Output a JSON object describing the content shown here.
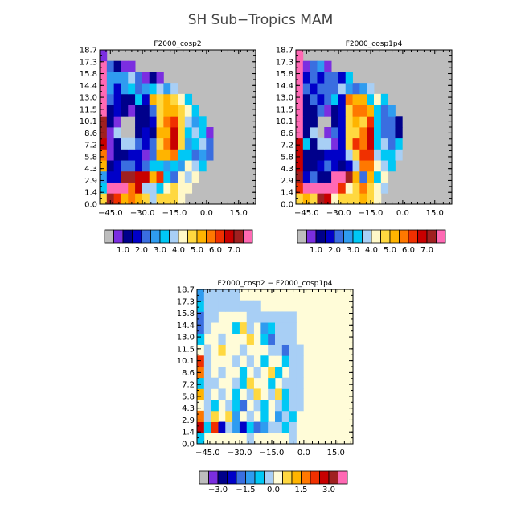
{
  "title": "SH Sub−Tropics MAM",
  "y_ticks": [
    "0.0",
    "1.4",
    "2.9",
    "4.3",
    "5.8",
    "7.2",
    "8.6",
    "10.1",
    "11.5",
    "13.0",
    "14.4",
    "15.8",
    "17.3",
    "18.7"
  ],
  "x_ticks": [
    "−45.0",
    "−30.0",
    "−15.0",
    "0.0",
    "15.0"
  ],
  "palettes": {
    "abs": [
      "#bdbdbd",
      "#7b2ee0",
      "#00008b",
      "#0000c8",
      "#3a6ee0",
      "#2f9cf0",
      "#00c8f5",
      "#a8cff5",
      "#fff8c8",
      "#ffd840",
      "#ffb400",
      "#ff7800",
      "#f03000",
      "#c80000",
      "#a02020",
      "#ff69b4"
    ],
    "diff": [
      "#bdbdbd",
      "#7b2ee0",
      "#00008b",
      "#0000c8",
      "#3a6ee0",
      "#2f9cf0",
      "#00c8f5",
      "#a8cff5",
      "#fffcd8",
      "#ffd840",
      "#ffb400",
      "#ff7800",
      "#f03000",
      "#c80000",
      "#a02020",
      "#ff69b4"
    ]
  },
  "colorbar_abs_labels": [
    "1.0",
    "2.0",
    "3.0",
    "4.0",
    "5.0",
    "6.0",
    "7.0"
  ],
  "colorbar_diff_labels": [
    "−3.0",
    "−1.5",
    "0.0",
    "1.5",
    "3.0"
  ],
  "chart_data": [
    {
      "type": "heatmap",
      "title": "F2000_cosp2",
      "xlabel": "",
      "ylabel": "",
      "xlim": [
        -50,
        23
      ],
      "ylim": [
        0,
        18.7
      ],
      "background": "#bdbdbd",
      "cells": [
        [
          9,
          14,
          12,
          10,
          11,
          10,
          9,
          7,
          9,
          9,
          9,
          8,
          0,
          0,
          0,
          0,
          0,
          0,
          0,
          0,
          0,
          0
        ],
        [
          6,
          15,
          15,
          15,
          11,
          13,
          7,
          7,
          6,
          8,
          9,
          8,
          8,
          0,
          0,
          0,
          0,
          0,
          0,
          0,
          0,
          0
        ],
        [
          5,
          3,
          3,
          14,
          14,
          13,
          13,
          10,
          12,
          6,
          4,
          8,
          7,
          8,
          0,
          0,
          0,
          0,
          0,
          0,
          0,
          0
        ],
        [
          10,
          2,
          3,
          4,
          4,
          3,
          4,
          6,
          6,
          5,
          6,
          5,
          8,
          7,
          6,
          0,
          0,
          0,
          0,
          0,
          0,
          0
        ],
        [
          11,
          1,
          2,
          2,
          3,
          3,
          1,
          4,
          10,
          10,
          11,
          6,
          6,
          4,
          5,
          4,
          0,
          0,
          0,
          0,
          0,
          0
        ],
        [
          13,
          1,
          2,
          7,
          7,
          4,
          3,
          4,
          9,
          11,
          13,
          9,
          5,
          6,
          7,
          4,
          0,
          0,
          0,
          0,
          0,
          0
        ],
        [
          14,
          1,
          7,
          0,
          0,
          2,
          3,
          2,
          10,
          10,
          13,
          9,
          6,
          7,
          6,
          1,
          0,
          0,
          0,
          0,
          0,
          0
        ],
        [
          14,
          2,
          1,
          0,
          0,
          2,
          2,
          3,
          9,
          11,
          12,
          9,
          7,
          5,
          6,
          0,
          0,
          0,
          0,
          0,
          0,
          0
        ],
        [
          15,
          2,
          3,
          2,
          1,
          2,
          2,
          4,
          9,
          10,
          10,
          9,
          8,
          6,
          0,
          0,
          0,
          0,
          0,
          0,
          0,
          0
        ],
        [
          15,
          4,
          3,
          2,
          2,
          6,
          3,
          10,
          9,
          10,
          9,
          8,
          6,
          0,
          0,
          0,
          0,
          0,
          0,
          0,
          0,
          0
        ],
        [
          15,
          5,
          3,
          5,
          6,
          4,
          5,
          6,
          7,
          5,
          7,
          0,
          0,
          0,
          0,
          0,
          0,
          0,
          0,
          0,
          0,
          0
        ],
        [
          15,
          5,
          5,
          5,
          7,
          4,
          1,
          2,
          1,
          0,
          0,
          0,
          0,
          0,
          0,
          0,
          0,
          0,
          0,
          0,
          0,
          0
        ],
        [
          15,
          4,
          2,
          1,
          1,
          0,
          0,
          0,
          0,
          0,
          0,
          0,
          0,
          0,
          0,
          0,
          0,
          0,
          0,
          0,
          0,
          0
        ],
        [
          1,
          0,
          0,
          0,
          0,
          0,
          0,
          0,
          0,
          0,
          0,
          0,
          0,
          0,
          0,
          0,
          0,
          0,
          0,
          0,
          0,
          0
        ]
      ]
    },
    {
      "type": "heatmap",
      "title": "F2000_cosp1p4",
      "xlabel": "",
      "ylabel": "",
      "xlim": [
        -50,
        23
      ],
      "ylim": [
        0,
        18.7
      ],
      "background": "#bdbdbd",
      "cells": [
        [
          9,
          10,
          9,
          14,
          13,
          8,
          9,
          9,
          9,
          10,
          9,
          8,
          0,
          0,
          0,
          0,
          0,
          0,
          0,
          0,
          0,
          0
        ],
        [
          12,
          15,
          15,
          15,
          15,
          15,
          12,
          8,
          9,
          11,
          9,
          8,
          7,
          0,
          0,
          0,
          0,
          0,
          0,
          0,
          0,
          0
        ],
        [
          14,
          3,
          4,
          2,
          2,
          15,
          15,
          14,
          10,
          4,
          10,
          6,
          8,
          0,
          0,
          0,
          0,
          0,
          0,
          0,
          0,
          0
        ],
        [
          13,
          2,
          2,
          3,
          4,
          3,
          2,
          3,
          7,
          11,
          11,
          8,
          7,
          6,
          0,
          0,
          0,
          0,
          0,
          0,
          0,
          0
        ],
        [
          13,
          2,
          2,
          2,
          3,
          3,
          3,
          7,
          9,
          12,
          12,
          7,
          6,
          6,
          7,
          0,
          0,
          0,
          0,
          0,
          0,
          0
        ],
        [
          13,
          6,
          2,
          7,
          7,
          1,
          3,
          9,
          12,
          11,
          13,
          6,
          7,
          4,
          6,
          0,
          0,
          0,
          0,
          0,
          0,
          0
        ],
        [
          15,
          2,
          7,
          0,
          1,
          4,
          3,
          9,
          9,
          11,
          13,
          6,
          4,
          4,
          2,
          0,
          0,
          0,
          0,
          0,
          0,
          0
        ],
        [
          15,
          2,
          2,
          0,
          0,
          2,
          3,
          9,
          10,
          9,
          12,
          6,
          4,
          4,
          2,
          0,
          0,
          0,
          0,
          0,
          0,
          0
        ],
        [
          15,
          2,
          2,
          4,
          1,
          2,
          3,
          9,
          11,
          11,
          10,
          6,
          4,
          5,
          0,
          0,
          0,
          0,
          0,
          0,
          0,
          0
        ],
        [
          15,
          2,
          4,
          3,
          4,
          6,
          3,
          11,
          10,
          10,
          6,
          8,
          6,
          0,
          0,
          0,
          0,
          0,
          0,
          0,
          0,
          0
        ],
        [
          15,
          4,
          3,
          4,
          4,
          4,
          7,
          5,
          4,
          5,
          7,
          0,
          0,
          0,
          0,
          0,
          0,
          0,
          0,
          0,
          0,
          0
        ],
        [
          15,
          3,
          4,
          3,
          4,
          4,
          3,
          6,
          0,
          0,
          0,
          0,
          0,
          0,
          0,
          0,
          0,
          0,
          0,
          0,
          0,
          0
        ],
        [
          15,
          1,
          4,
          5,
          1,
          0,
          0,
          0,
          0,
          0,
          0,
          0,
          0,
          0,
          0,
          0,
          0,
          0,
          0,
          0,
          0,
          0
        ],
        [
          15,
          0,
          0,
          0,
          0,
          0,
          0,
          0,
          0,
          0,
          0,
          0,
          0,
          0,
          0,
          0,
          0,
          0,
          0,
          0,
          0,
          0
        ]
      ]
    },
    {
      "type": "heatmap",
      "title": "F2000_cosp2 − F2000_cosp1p4",
      "xlabel": "",
      "ylabel": "",
      "xlim": [
        -50,
        23
      ],
      "ylim": [
        0,
        18.7
      ],
      "background": "#fffcd8",
      "cells": [
        [
          6,
          8,
          8,
          8,
          8,
          8,
          8,
          7,
          8,
          8,
          8,
          8,
          8,
          7,
          8,
          8,
          8,
          8,
          8,
          8,
          8,
          8
        ],
        [
          13,
          6,
          12,
          3,
          7,
          5,
          3,
          6,
          4,
          5,
          7,
          7,
          6,
          7,
          8,
          8,
          8,
          8,
          8,
          8,
          8,
          8
        ],
        [
          11,
          7,
          9,
          8,
          9,
          5,
          8,
          7,
          8,
          6,
          8,
          5,
          7,
          6,
          8,
          8,
          8,
          8,
          8,
          8,
          8,
          8
        ],
        [
          8,
          7,
          6,
          8,
          7,
          6,
          4,
          8,
          7,
          6,
          8,
          7,
          6,
          7,
          7,
          8,
          8,
          8,
          8,
          8,
          8,
          8
        ],
        [
          10,
          7,
          8,
          7,
          8,
          6,
          8,
          7,
          9,
          8,
          7,
          9,
          6,
          7,
          7,
          8,
          8,
          8,
          8,
          8,
          8,
          8
        ],
        [
          6,
          7,
          7,
          8,
          8,
          7,
          6,
          9,
          8,
          8,
          6,
          8,
          7,
          7,
          7,
          8,
          8,
          8,
          8,
          8,
          8,
          8
        ],
        [
          11,
          7,
          8,
          7,
          8,
          8,
          6,
          8,
          7,
          8,
          9,
          6,
          8,
          7,
          7,
          8,
          8,
          8,
          8,
          8,
          8,
          8
        ],
        [
          12,
          7,
          8,
          8,
          8,
          7,
          8,
          7,
          8,
          6,
          8,
          8,
          6,
          7,
          7,
          8,
          8,
          8,
          8,
          8,
          8,
          8
        ],
        [
          8,
          7,
          8,
          9,
          8,
          8,
          7,
          8,
          8,
          8,
          7,
          7,
          4,
          7,
          7,
          8,
          8,
          8,
          8,
          8,
          8,
          8
        ],
        [
          6,
          8,
          8,
          7,
          8,
          8,
          8,
          9,
          8,
          6,
          4,
          7,
          7,
          7,
          8,
          8,
          8,
          8,
          8,
          8,
          8,
          8
        ],
        [
          4,
          7,
          8,
          8,
          8,
          6,
          9,
          7,
          8,
          5,
          6,
          7,
          7,
          7,
          8,
          8,
          8,
          8,
          8,
          8,
          8,
          8
        ],
        [
          4,
          7,
          7,
          8,
          8,
          8,
          8,
          7,
          7,
          7,
          7,
          7,
          7,
          7,
          8,
          8,
          8,
          8,
          8,
          8,
          8,
          8
        ],
        [
          6,
          7,
          7,
          7,
          7,
          7,
          7,
          7,
          7,
          8,
          8,
          8,
          8,
          8,
          8,
          8,
          8,
          8,
          8,
          8,
          8,
          8
        ],
        [
          5,
          7,
          7,
          7,
          7,
          7,
          8,
          8,
          8,
          8,
          8,
          8,
          8,
          8,
          8,
          8,
          8,
          8,
          8,
          8,
          8,
          8
        ]
      ]
    }
  ]
}
